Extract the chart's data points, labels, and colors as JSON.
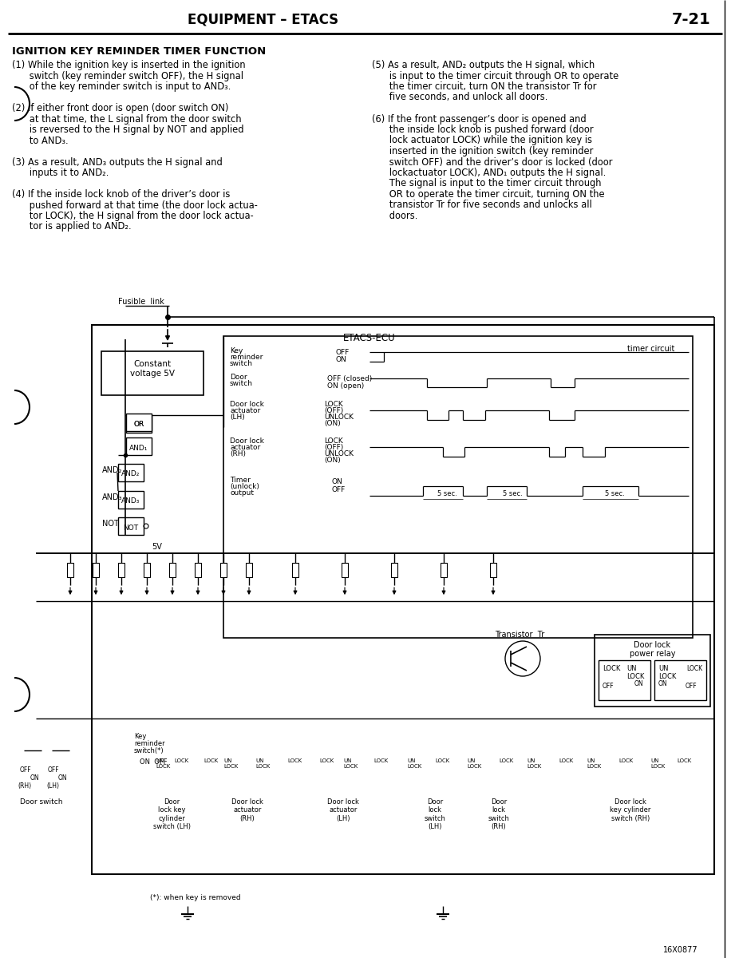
{
  "page_header_left": "EQUIPMENT – ETACS",
  "page_number": "7-21",
  "section_title": "IGNITION KEY REMINDER TIMER FUNCTION",
  "left_items": [
    [
      "(1) While the ignition key is inserted in the ignition",
      "     switch (key reminder switch OFF), the H signal",
      "     of the key reminder switch is input to AND",
      "     3",
      "."
    ],
    [
      "(2) If either front door is open (door switch ON)",
      "     at that time, the L signal from the door switch",
      "     is reversed to the H signal by NOT and applied",
      "     to AND",
      "     3",
      "."
    ],
    [
      "(3) As a result, AND",
      "3",
      " outputs the H signal and",
      "     inputs it to AND",
      "2",
      "."
    ],
    [
      "(4) If the inside lock knob of the driver’s door is",
      "     pushed forward at that time (the door lock actua-",
      "     tor LOCK), the H signal from the door lock actua-",
      "     tor is applied to AND",
      "2",
      "."
    ]
  ],
  "right_items": [
    [
      "(5) As a result, AND",
      "2",
      " outputs the H signal, which",
      "     is input to the timer circuit through OR to operate",
      "     the timer circuit, turn ON the transistor Tr for",
      "     five seconds, and unlock all doors."
    ],
    [
      "(6) If the front passenger’s door is opened and",
      "     the inside lock knob is pushed forward (door",
      "     lock actuator LOCK) while the ignition key is",
      "     inserted in the ignition switch (key reminder",
      "     switch OFF) and the driver’s door is locked (door",
      "     lockactuator LOCK), AND",
      "1",
      " outputs the H signal.",
      "     The signal is input to the timer circuit through",
      "     OR to operate the timer circuit, turning ON the",
      "     transistor Tr for five seconds and unlocks all",
      "     doors."
    ]
  ],
  "bg_color": "#ffffff",
  "text_color": "#000000"
}
